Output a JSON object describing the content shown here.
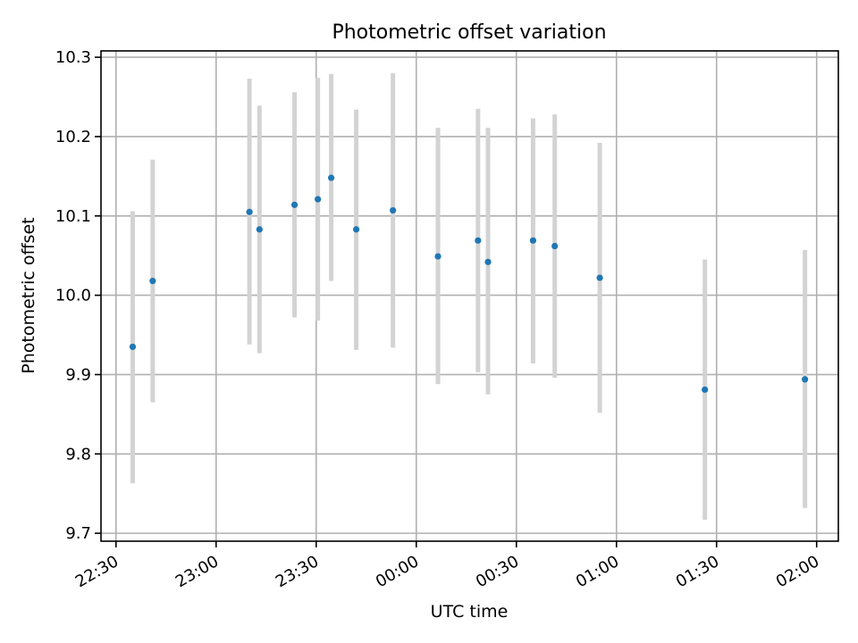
{
  "chart_data": {
    "type": "scatter",
    "title": "Photometric offset variation",
    "xlabel": "UTC time",
    "ylabel": "Photometric offset",
    "x_ticks": [
      {
        "t": 0,
        "label": "22:30"
      },
      {
        "t": 30,
        "label": "23:00"
      },
      {
        "t": 60,
        "label": "23:30"
      },
      {
        "t": 90,
        "label": "00:00"
      },
      {
        "t": 120,
        "label": "00:30"
      },
      {
        "t": 150,
        "label": "01:00"
      },
      {
        "t": 180,
        "label": "01:30"
      },
      {
        "t": 210,
        "label": "02:00"
      }
    ],
    "y_ticks": [
      9.7,
      9.8,
      9.9,
      10.0,
      10.1,
      10.2,
      10.3
    ],
    "xlim": [
      "22:25:30",
      "02:06:30"
    ],
    "ylim": [
      9.69,
      10.308
    ],
    "grid": true,
    "point_color": "#1f77b4",
    "errorbar_color": "#d3d3d3",
    "points": [
      {
        "time": "22:35:00",
        "y": 9.935,
        "lo": 9.763,
        "hi": 10.106
      },
      {
        "time": "22:41:00",
        "y": 10.018,
        "lo": 9.865,
        "hi": 10.171
      },
      {
        "time": "23:10:00",
        "y": 10.105,
        "lo": 9.938,
        "hi": 10.273
      },
      {
        "time": "23:13:00",
        "y": 10.083,
        "lo": 9.927,
        "hi": 10.239
      },
      {
        "time": "23:23:30",
        "y": 10.114,
        "lo": 9.972,
        "hi": 10.256
      },
      {
        "time": "23:30:30",
        "y": 10.121,
        "lo": 9.968,
        "hi": 10.274
      },
      {
        "time": "23:34:30",
        "y": 10.148,
        "lo": 10.018,
        "hi": 10.279
      },
      {
        "time": "23:42:00",
        "y": 10.083,
        "lo": 9.931,
        "hi": 10.234
      },
      {
        "time": "23:53:00",
        "y": 10.107,
        "lo": 9.934,
        "hi": 10.28
      },
      {
        "time": "00:06:30",
        "y": 10.049,
        "lo": 9.888,
        "hi": 10.211
      },
      {
        "time": "00:18:30",
        "y": 10.069,
        "lo": 9.903,
        "hi": 10.235
      },
      {
        "time": "00:21:30",
        "y": 10.042,
        "lo": 9.875,
        "hi": 10.211
      },
      {
        "time": "00:35:00",
        "y": 10.069,
        "lo": 9.914,
        "hi": 10.223
      },
      {
        "time": "00:41:30",
        "y": 10.062,
        "lo": 9.896,
        "hi": 10.228
      },
      {
        "time": "00:55:00",
        "y": 10.022,
        "lo": 9.852,
        "hi": 10.192
      },
      {
        "time": "01:26:30",
        "y": 9.881,
        "lo": 9.717,
        "hi": 10.045
      },
      {
        "time": "01:56:30",
        "y": 9.894,
        "lo": 9.732,
        "hi": 10.057
      }
    ]
  }
}
